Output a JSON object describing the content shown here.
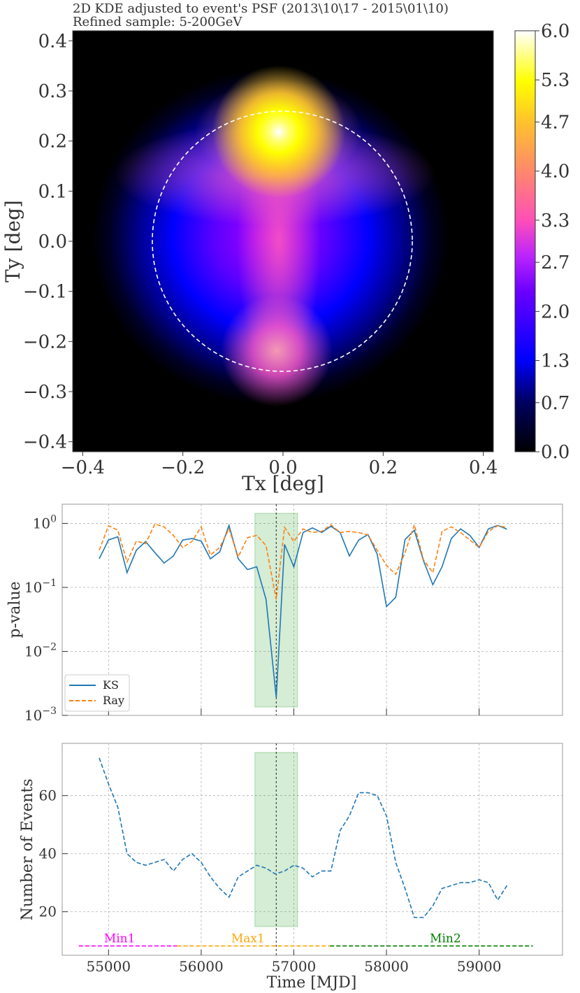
{
  "chart_data": [
    {
      "type": "heatmap",
      "title_line1": "2D KDE adjusted to event's PSF (2013\\10\\17 - 2015\\01\\10)",
      "title_line2": "Refined sample: 5-200GeV",
      "xlabel": "Tx [deg]",
      "ylabel": "Ty [deg]",
      "xlim": [
        -0.42,
        0.42
      ],
      "ylim": [
        -0.42,
        0.42
      ],
      "x_ticks": [
        -0.4,
        -0.2,
        0.0,
        0.2,
        0.4
      ],
      "x_tick_labels": [
        "−0.4",
        "−0.2",
        "0.0",
        "0.2",
        "0.4"
      ],
      "y_ticks": [
        0.4,
        0.3,
        0.2,
        0.1,
        0.0,
        -0.1,
        -0.2,
        -0.3,
        -0.4
      ],
      "y_tick_labels": [
        "0.4",
        "0.3",
        "0.2",
        "0.1",
        "0.0",
        "−0.1",
        "−0.2",
        "−0.3",
        "−0.4"
      ],
      "colorbar_range": [
        0.0,
        6.0
      ],
      "colorbar_ticks": [
        6.0,
        5.3,
        4.7,
        4.0,
        3.3,
        2.7,
        2.0,
        1.3,
        0.7,
        0.0
      ],
      "colorbar_tick_labels": [
        "6.0",
        "5.3",
        "4.7",
        "4.0",
        "3.3",
        "2.7",
        "2.0",
        "1.3",
        "0.7",
        "0.0"
      ],
      "colormap": "gnuplot2",
      "circle": {
        "center_deg": [
          0.0,
          0.0
        ],
        "radius_deg": 0.26,
        "style": "dashed",
        "color": "#ffffff"
      },
      "peaks": [
        {
          "name": "main",
          "tx": -0.01,
          "ty": 0.22,
          "value": 6.0
        },
        {
          "name": "south",
          "tx": -0.02,
          "ty": -0.22,
          "value": 3.4
        }
      ]
    },
    {
      "type": "line",
      "ylabel": "p-value",
      "yscale": "log",
      "ylim_exp": [
        -3,
        0.3
      ],
      "xlim": [
        54500,
        59900
      ],
      "y_ticks_exp": [
        0,
        -1,
        -2,
        -3
      ],
      "y_tick_bases": [
        "10",
        "10",
        "10",
        "10"
      ],
      "y_tick_exps": [
        "0",
        "−1",
        "−2",
        "−3"
      ],
      "x_ticks": [
        55000,
        56000,
        57000,
        58000,
        59000
      ],
      "highlight_band": [
        56580,
        57040
      ],
      "vline": 56810,
      "legend_position": "lower-left",
      "x": [
        54900,
        55000,
        55100,
        55200,
        55300,
        55400,
        55500,
        55600,
        55700,
        55800,
        55900,
        56000,
        56100,
        56200,
        56300,
        56400,
        56500,
        56600,
        56700,
        56810,
        56900,
        57000,
        57100,
        57200,
        57300,
        57400,
        57500,
        57600,
        57700,
        57800,
        57900,
        58000,
        58100,
        58200,
        58300,
        58400,
        58500,
        58600,
        58700,
        58800,
        58900,
        59000,
        59100,
        59200,
        59300
      ],
      "series": [
        {
          "name": "KS",
          "color": "#1f77b4",
          "dash": "solid",
          "values": [
            0.28,
            0.55,
            0.62,
            0.17,
            0.38,
            0.52,
            0.35,
            0.24,
            0.31,
            0.55,
            0.58,
            0.53,
            0.28,
            0.36,
            0.93,
            0.28,
            0.19,
            0.21,
            0.065,
            0.0019,
            0.47,
            0.21,
            0.72,
            0.85,
            0.72,
            0.9,
            0.72,
            0.31,
            0.55,
            0.67,
            0.33,
            0.05,
            0.07,
            0.56,
            0.78,
            0.26,
            0.11,
            0.21,
            0.58,
            0.82,
            0.65,
            0.42,
            0.82,
            0.93,
            0.81
          ]
        },
        {
          "name": "Ray",
          "color": "#ff7f0e",
          "dash": "dashed",
          "values": [
            0.38,
            0.92,
            0.78,
            0.25,
            0.53,
            0.48,
            0.98,
            0.88,
            0.65,
            0.42,
            0.52,
            0.88,
            0.32,
            0.42,
            0.82,
            0.3,
            0.6,
            0.65,
            0.45,
            0.065,
            0.87,
            0.52,
            0.82,
            0.72,
            0.75,
            0.95,
            0.72,
            0.75,
            0.72,
            0.66,
            0.38,
            0.22,
            0.16,
            0.35,
            0.95,
            0.27,
            0.17,
            0.75,
            0.88,
            0.72,
            0.55,
            0.42,
            0.75,
            0.92,
            0.86
          ]
        }
      ]
    },
    {
      "type": "line",
      "xlabel": "Time [MJD]",
      "ylabel": "Number of Events",
      "xlim": [
        54500,
        59900
      ],
      "ylim": [
        5,
        78
      ],
      "x_ticks": [
        55000,
        56000,
        57000,
        58000,
        59000
      ],
      "x_tick_labels": [
        "55000",
        "56000",
        "57000",
        "58000",
        "59000"
      ],
      "y_ticks": [
        20,
        40,
        60
      ],
      "y_tick_labels": [
        "20",
        "40",
        "60"
      ],
      "highlight_band": [
        56580,
        57040
      ],
      "vline": 56810,
      "series": [
        {
          "name": "Number of Events",
          "color": "#1f77b4",
          "dash": "dashed",
          "x": [
            54900,
            55000,
            55100,
            55200,
            55300,
            55400,
            55500,
            55600,
            55700,
            55800,
            55900,
            56000,
            56100,
            56200,
            56300,
            56400,
            56500,
            56600,
            56700,
            56800,
            56900,
            57000,
            57100,
            57200,
            57300,
            57400,
            57500,
            57600,
            57700,
            57800,
            57900,
            58000,
            58100,
            58200,
            58300,
            58400,
            58500,
            58600,
            58700,
            58800,
            58900,
            59000,
            59100,
            59200,
            59300
          ],
          "values": [
            73,
            64,
            56,
            40,
            37,
            36,
            37,
            38,
            34,
            38,
            40,
            37,
            32,
            28,
            25,
            32,
            34,
            36,
            35,
            33,
            34,
            36,
            35,
            32,
            34,
            34,
            48,
            53,
            61,
            61,
            60,
            53,
            37,
            28,
            18,
            18,
            22,
            28,
            29,
            30,
            30,
            31,
            30,
            24,
            29
          ]
        }
      ],
      "periods": [
        {
          "name": "Min1",
          "start": 54680,
          "end": 55740,
          "color": "#ff00ff"
        },
        {
          "name": "Max1",
          "start": 55740,
          "end": 57390,
          "color": "#ffa500"
        },
        {
          "name": "Min2",
          "start": 57390,
          "end": 59580,
          "color": "#008000"
        }
      ],
      "period_y": 8.2
    }
  ]
}
